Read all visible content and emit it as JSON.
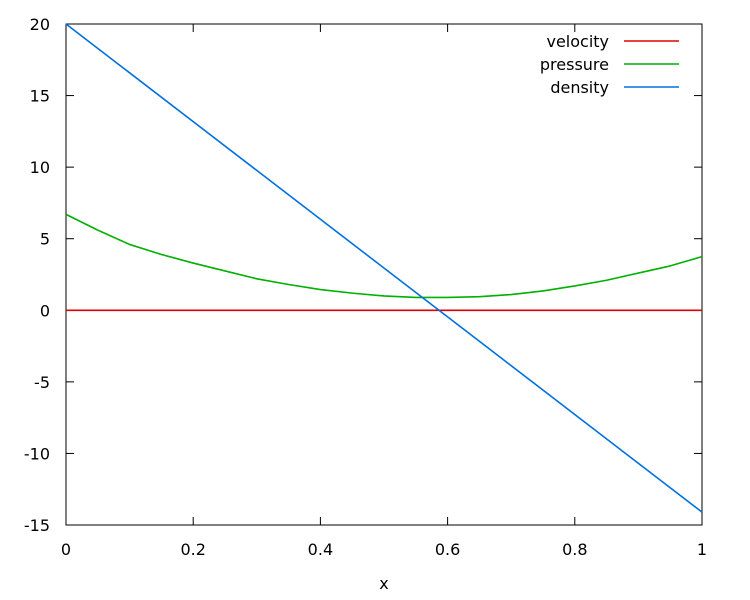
{
  "chart_data": {
    "type": "line",
    "title": "",
    "xlabel": "x",
    "ylabel": "",
    "xlim": [
      0,
      1
    ],
    "ylim": [
      -15,
      20
    ],
    "xticks": [
      "0",
      "0.2",
      "0.4",
      "0.6",
      "0.8",
      "1"
    ],
    "yticks": [
      "-15",
      "-10",
      "-5",
      "0",
      "5",
      "10",
      "15",
      "20"
    ],
    "grid": false,
    "legend_position": "top-right",
    "series": [
      {
        "name": "velocity",
        "color": "#e00000",
        "x": [
          0,
          1
        ],
        "y": [
          0,
          0
        ]
      },
      {
        "name": "pressure",
        "color": "#00b000",
        "x": [
          0,
          0.05,
          0.1,
          0.15,
          0.2,
          0.25,
          0.3,
          0.35,
          0.4,
          0.45,
          0.5,
          0.55,
          0.6,
          0.65,
          0.7,
          0.75,
          0.8,
          0.85,
          0.9,
          0.95,
          1.0
        ],
        "y": [
          6.7,
          5.6,
          4.6,
          3.9,
          3.3,
          2.75,
          2.2,
          1.8,
          1.45,
          1.2,
          1.0,
          0.9,
          0.9,
          0.95,
          1.1,
          1.35,
          1.7,
          2.1,
          2.6,
          3.1,
          3.75
        ]
      },
      {
        "name": "density",
        "color": "#0070e0",
        "x": [
          0,
          1
        ],
        "y": [
          20,
          -14.1
        ]
      }
    ]
  }
}
